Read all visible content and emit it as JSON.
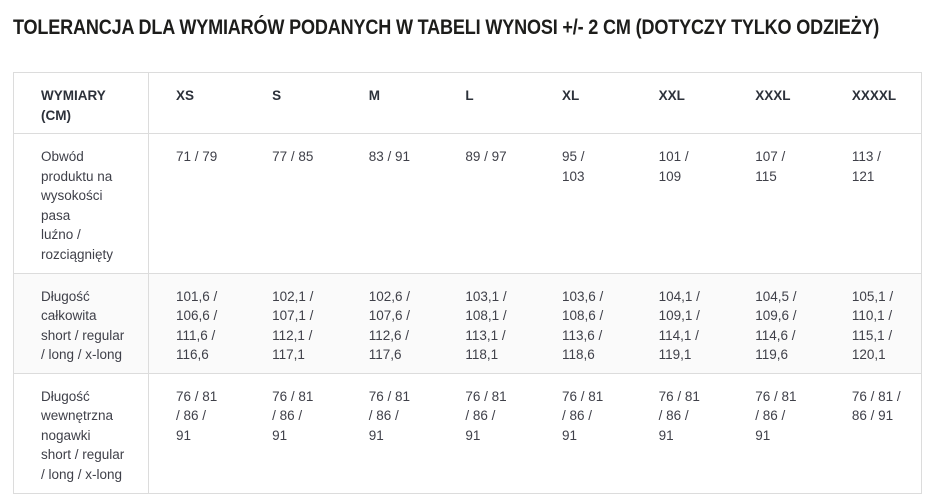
{
  "title": "TOLERANCJA DLA WYMIARÓW PODANYCH W TABELI WYNOSI +/- 2 CM (DOTYCZY TYLKO ODZIEŻY)",
  "colors": {
    "border": "#dcdcdc",
    "title_text": "#1d1d1b",
    "header_text": "#2c313a",
    "cell_text": "#3f4049",
    "stripe_row": "#fafafa"
  },
  "table": {
    "header": [
      "WYMIARY\n(CM)",
      "XS",
      "S",
      "M",
      "L",
      "XL",
      "XXL",
      "XXXL",
      "XXXXL"
    ],
    "rows": [
      {
        "label": "Obwód\nproduktu na\nwysokości\npasa\nluźno /\nrozciągnięty",
        "values": [
          "71 / 79",
          "77 / 85",
          "83 / 91",
          "89 / 97",
          "95 /\n103",
          "101 /\n109",
          "107 /\n115",
          "113 /\n121"
        ]
      },
      {
        "label": "Długość\ncałkowita\nshort / regular\n/ long / x-long",
        "values": [
          "101,6 /\n106,6 /\n111,6 /\n116,6",
          "102,1 /\n107,1 /\n112,1 /\n117,1",
          "102,6 /\n107,6 /\n112,6 /\n117,6",
          "103,1 /\n108,1 /\n113,1 /\n118,1",
          "103,6 /\n108,6 /\n113,6 /\n118,6",
          "104,1 /\n109,1 /\n114,1 /\n119,1",
          "104,5 /\n109,6 /\n114,6 /\n119,6",
          "105,1 /\n110,1 /\n115,1 /\n120,1"
        ]
      },
      {
        "label": "Długość\nwewnętrzna\nnogawki\nshort / regular\n/ long / x-long",
        "values": [
          "76 / 81\n/ 86 /\n91",
          "76 / 81\n/ 86 /\n91",
          "76 / 81\n/ 86 /\n91",
          "76 / 81\n/ 86 /\n91",
          "76 / 81\n/ 86 /\n91",
          "76 / 81\n/ 86 /\n91",
          "76 / 81\n/ 86 /\n91",
          "76 / 81 /\n86 / 91"
        ]
      }
    ]
  }
}
